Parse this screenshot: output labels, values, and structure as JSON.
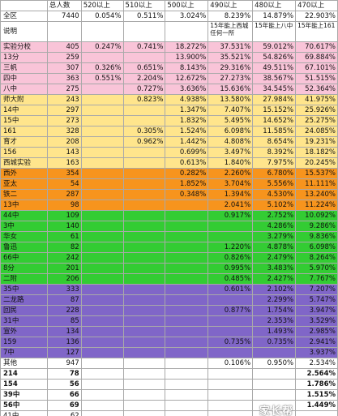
{
  "headers": [
    "",
    "总人数",
    "520以上",
    "510以上",
    "500以上",
    "490以上",
    "480以上",
    "470以上"
  ],
  "total_row": [
    "全区",
    "7440",
    "0.054%",
    "0.511%",
    "3.024%",
    "8.239%",
    "14.879%",
    "22.903%"
  ],
  "note_row": [
    "说明",
    "",
    "",
    "",
    "",
    "15年能上西城任何一所",
    "15年能上八中",
    "15年能上161"
  ],
  "colors": {
    "pink": "#f9c4d8",
    "yellow": "#ffe58c",
    "orange": "#f7941d",
    "green": "#33cc33",
    "purple": "#8066c8",
    "white": "#ffffff"
  },
  "rows": [
    {
      "cells": [
        "实验分校",
        "405",
        "0.247%",
        "0.741%",
        "18.272%",
        "37.531%",
        "59.012%",
        "70.617%"
      ],
      "color": "pink"
    },
    {
      "cells": [
        "13分",
        "259",
        "",
        "",
        "13.900%",
        "35.521%",
        "54.826%",
        "69.884%"
      ],
      "color": "pink"
    },
    {
      "cells": [
        "三帆",
        "307",
        "0.326%",
        "0.651%",
        "8.143%",
        "29.316%",
        "49.511%",
        "67.101%"
      ],
      "color": "pink"
    },
    {
      "cells": [
        "四中",
        "363",
        "0.551%",
        "2.204%",
        "12.672%",
        "27.273%",
        "38.567%",
        "51.515%"
      ],
      "color": "pink"
    },
    {
      "cells": [
        "八中",
        "275",
        "",
        "0.727%",
        "3.636%",
        "15.636%",
        "34.545%",
        "52.364%"
      ],
      "color": "pink"
    },
    {
      "cells": [
        "师大附",
        "243",
        "",
        "0.823%",
        "4.938%",
        "13.580%",
        "27.984%",
        "41.975%"
      ],
      "color": "yellow"
    },
    {
      "cells": [
        "14中",
        "297",
        "",
        "",
        "1.347%",
        "7.407%",
        "15.152%",
        "25.926%"
      ],
      "color": "yellow"
    },
    {
      "cells": [
        "15中",
        "273",
        "",
        "",
        "1.832%",
        "5.495%",
        "14.652%",
        "25.275%"
      ],
      "color": "yellow"
    },
    {
      "cells": [
        "161",
        "328",
        "",
        "0.305%",
        "1.524%",
        "6.098%",
        "11.585%",
        "24.085%"
      ],
      "color": "yellow"
    },
    {
      "cells": [
        "育才",
        "208",
        "",
        "0.962%",
        "1.442%",
        "4.808%",
        "8.654%",
        "19.231%"
      ],
      "color": "yellow"
    },
    {
      "cells": [
        "156",
        "143",
        "",
        "",
        "0.699%",
        "3.497%",
        "8.392%",
        "18.182%"
      ],
      "color": "yellow"
    },
    {
      "cells": [
        "西城实验",
        "163",
        "",
        "",
        "0.613%",
        "1.840%",
        "7.975%",
        "20.245%"
      ],
      "color": "yellow"
    },
    {
      "cells": [
        "西外",
        "354",
        "",
        "",
        "0.282%",
        "2.260%",
        "6.780%",
        "15.537%"
      ],
      "color": "orange"
    },
    {
      "cells": [
        "亚太",
        "54",
        "",
        "",
        "1.852%",
        "3.704%",
        "5.556%",
        "11.111%"
      ],
      "color": "orange"
    },
    {
      "cells": [
        "铁二",
        "287",
        "",
        "",
        "0.348%",
        "1.394%",
        "4.530%",
        "13.240%"
      ],
      "color": "orange"
    },
    {
      "cells": [
        "13中",
        "98",
        "",
        "",
        "",
        "2.041%",
        "5.102%",
        "11.224%"
      ],
      "color": "orange"
    },
    {
      "cells": [
        "44中",
        "109",
        "",
        "",
        "",
        "0.917%",
        "2.752%",
        "10.092%"
      ],
      "color": "green"
    },
    {
      "cells": [
        "3中",
        "140",
        "",
        "",
        "",
        "",
        "4.286%",
        "9.286%"
      ],
      "color": "green"
    },
    {
      "cells": [
        "华女",
        "61",
        "",
        "",
        "",
        "",
        "3.279%",
        "9.836%"
      ],
      "color": "green"
    },
    {
      "cells": [
        "鲁迅",
        "82",
        "",
        "",
        "",
        "1.220%",
        "4.878%",
        "6.098%"
      ],
      "color": "green"
    },
    {
      "cells": [
        "66中",
        "242",
        "",
        "",
        "",
        "0.826%",
        "2.479%",
        "8.264%"
      ],
      "color": "green"
    },
    {
      "cells": [
        "8分",
        "201",
        "",
        "",
        "",
        "0.995%",
        "3.483%",
        "5.970%"
      ],
      "color": "green"
    },
    {
      "cells": [
        "二附",
        "206",
        "",
        "",
        "",
        "0.485%",
        "2.427%",
        "7.767%"
      ],
      "color": "green"
    },
    {
      "cells": [
        "35中",
        "333",
        "",
        "",
        "",
        "0.601%",
        "2.102%",
        "7.207%"
      ],
      "color": "purple"
    },
    {
      "cells": [
        "二龙路",
        "87",
        "",
        "",
        "",
        "",
        "2.299%",
        "5.747%"
      ],
      "color": "purple"
    },
    {
      "cells": [
        "回民",
        "228",
        "",
        "",
        "",
        "0.877%",
        "1.754%",
        "3.947%"
      ],
      "color": "purple"
    },
    {
      "cells": [
        "31中",
        "85",
        "",
        "",
        "",
        "",
        "2.353%",
        "3.529%"
      ],
      "color": "purple"
    },
    {
      "cells": [
        "宣外",
        "134",
        "",
        "",
        "",
        "",
        "1.493%",
        "2.985%"
      ],
      "color": "purple"
    },
    {
      "cells": [
        "159",
        "136",
        "",
        "",
        "",
        "0.735%",
        "0.735%",
        "2.941%"
      ],
      "color": "purple"
    },
    {
      "cells": [
        "7中",
        "127",
        "",
        "",
        "",
        "",
        "",
        "3.937%"
      ],
      "color": "purple"
    },
    {
      "cells": [
        "其他",
        "947",
        "",
        "",
        "",
        "0.106%",
        "0.950%",
        "2.534%"
      ],
      "color": "white"
    },
    {
      "cells": [
        "214",
        "78",
        "",
        "",
        "",
        "",
        "",
        "2.564%"
      ],
      "color": "white",
      "bold": true
    },
    {
      "cells": [
        "154",
        "56",
        "",
        "",
        "",
        "",
        "",
        "1.786%"
      ],
      "color": "white",
      "bold": true
    },
    {
      "cells": [
        "39中",
        "66",
        "",
        "",
        "",
        "",
        "",
        "1.515%"
      ],
      "color": "white",
      "bold": true
    },
    {
      "cells": [
        "56中",
        "69",
        "",
        "",
        "",
        "",
        "",
        "1.449%"
      ],
      "color": "white",
      "bold": true
    },
    {
      "cells": [
        "41中",
        "62",
        "",
        "",
        "",
        "",
        "",
        ""
      ],
      "color": "white"
    }
  ],
  "watermark": "家长帮"
}
